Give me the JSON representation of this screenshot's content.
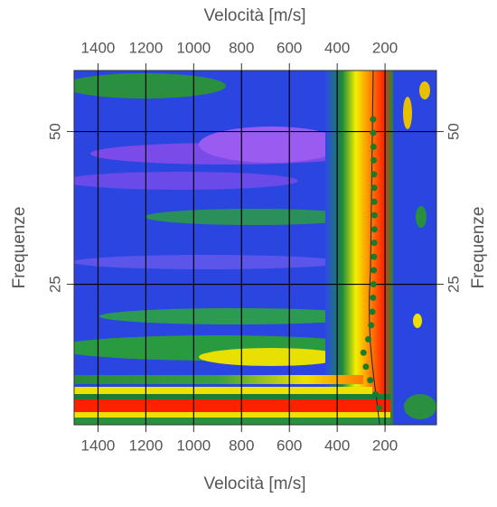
{
  "chart_data": {
    "type": "scatter",
    "x_label": "Velocità [m/s]",
    "y_label": "Frequenze",
    "x": [
      250,
      249,
      248,
      247,
      246,
      245,
      245,
      244,
      244,
      245,
      246,
      247,
      248,
      250,
      253,
      258,
      270,
      290,
      280,
      262,
      240,
      225
    ],
    "values": [
      52,
      49.8,
      47.5,
      45.3,
      43,
      40.8,
      38.5,
      36.3,
      34,
      31.8,
      29.5,
      27.3,
      25,
      22.8,
      20.5,
      18.3,
      16,
      13.8,
      11.5,
      9.3,
      7,
      4.8
    ],
    "color": "#1e7a2a",
    "xlim": [
      1500,
      -15
    ],
    "xticks": [
      1400,
      1200,
      1000,
      800,
      600,
      400,
      200
    ],
    "ylim": [
      2,
      60
    ],
    "yticks": [
      25,
      50
    ],
    "grid": true
  }
}
